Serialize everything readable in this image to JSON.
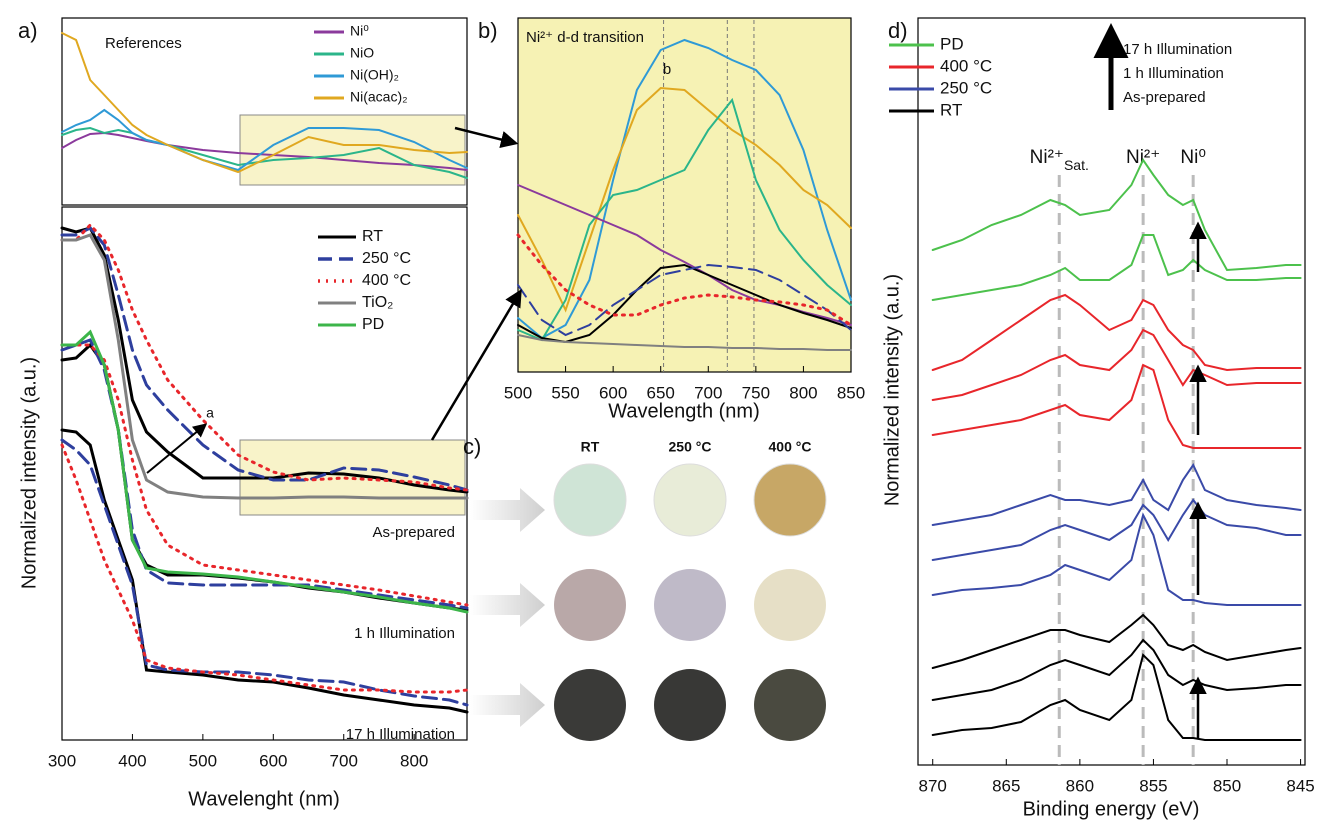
{
  "chart_data": [
    {
      "type": "line",
      "panel": "a)",
      "legend": "upper right",
      "annotations": [
        "References"
      ],
      "x": [
        300,
        320,
        340,
        360,
        380,
        400,
        420,
        450,
        500,
        550,
        600,
        650,
        700,
        750,
        800,
        850,
        875
      ],
      "xlim": [
        300,
        875
      ],
      "ylim": [
        0,
        187
      ],
      "series": [
        {
          "name": "Ni⁰",
          "color": "#8b3a9c",
          "values": [
            57,
            65,
            71,
            72,
            70,
            67,
            64,
            60,
            55,
            52,
            50,
            48,
            45,
            42,
            40,
            37,
            35
          ]
        },
        {
          "name": "NiO",
          "color": "#2bb58a",
          "values": [
            70,
            75,
            77,
            72,
            75,
            72,
            65,
            60,
            50,
            40,
            45,
            47,
            50,
            57,
            40,
            33,
            27
          ]
        },
        {
          "name": "Ni(OH)₂",
          "color": "#2f9ad6",
          "values": [
            73,
            80,
            85,
            95,
            85,
            72,
            65,
            60,
            45,
            35,
            60,
            77,
            77,
            75,
            63,
            45,
            37
          ]
        },
        {
          "name": "Ni(acac)₂",
          "color": "#e0a820",
          "values": [
            172,
            165,
            125,
            110,
            95,
            80,
            70,
            60,
            45,
            33,
            50,
            68,
            60,
            60,
            55,
            52,
            53
          ]
        }
      ]
    },
    {
      "type": "line",
      "legend": "upper right",
      "xlabel": "Wavelenght (nm)",
      "ylabel": "Normalized intensity (a.u.)",
      "annotations": [
        "As-prepared",
        "1 h Illumination",
        "17 h Illumination",
        "a"
      ],
      "x": [
        300,
        320,
        340,
        360,
        380,
        400,
        420,
        450,
        500,
        550,
        600,
        650,
        700,
        750,
        800,
        850,
        875
      ],
      "xlim": [
        300,
        875
      ],
      "xticks": [
        300,
        400,
        500,
        600,
        700,
        800
      ],
      "ylim": [
        0,
        533
      ],
      "series": [
        {
          "name": "RT",
          "color": "#000000",
          "dash": "solid",
          "values": [
            [
              512,
              508,
              512,
              485,
              420,
              340,
              308,
              288,
              262,
              262,
              262,
              267,
              266,
              262,
              255,
              250,
              248
            ],
            [
              380,
              382,
              395,
              375,
              310,
              200,
              175,
              165,
              165,
              162,
              158,
              152,
              148,
              142,
              137,
              132,
              130
            ],
            [
              310,
              308,
              295,
              240,
              200,
              160,
              70,
              68,
              65,
              60,
              58,
              52,
              45,
              40,
              35,
              32,
              28
            ]
          ]
        },
        {
          "name": "250 °C",
          "color": "#2e3f9e",
          "dash": "dashed",
          "values": [
            [
              505,
              505,
              512,
              495,
              445,
              390,
              355,
              330,
              295,
              270,
              260,
              260,
              272,
              270,
              263,
              255,
              250
            ],
            [
              390,
              395,
              400,
              370,
              310,
              210,
              170,
              157,
              155,
              155,
              155,
              155,
              150,
              145,
              140,
              135,
              132
            ],
            [
              300,
              290,
              275,
              235,
              195,
              155,
              75,
              70,
              68,
              68,
              65,
              60,
              58,
              50,
              44,
              40,
              35
            ]
          ]
        },
        {
          "name": "400 °C",
          "color": "#e8262b",
          "dash": "dotted",
          "values": [
            [
              500,
              500,
              515,
              500,
              470,
              430,
              400,
              360,
              320,
              285,
              268,
              260,
              262,
              260,
              258,
              252,
              250
            ],
            [
              395,
              395,
              395,
              380,
              340,
              280,
              230,
              195,
              175,
              170,
              165,
              160,
              155,
              150,
              144,
              138,
              135
            ],
            [
              295,
              260,
              220,
              180,
              150,
              120,
              80,
              72,
              68,
              65,
              60,
              55,
              50,
              50,
              48,
              48,
              50
            ]
          ]
        },
        {
          "name": "TiO₂",
          "color": "#808080",
          "dash": "solid",
          "values": [
            [
              500,
              500,
              505,
              480,
              400,
              300,
              260,
              248,
              243,
              242,
              242,
              243,
              243,
              242,
              242,
              242,
              242
            ],
            null,
            null
          ]
        },
        {
          "name": "PD",
          "color": "#3cb54a",
          "dash": "solid",
          "values": [
            null,
            [
              395,
              395,
              408,
              375,
              310,
              200,
              172,
              168,
              166,
              163,
              158,
              153,
              148,
              143,
              137,
              132,
              128
            ],
            null
          ]
        }
      ]
    },
    {
      "type": "line",
      "panel": "b)",
      "xlabel": "Wavelength (nm)",
      "annotations": [
        "Ni²⁺ d-d transition",
        "b"
      ],
      "x": [
        500,
        525,
        550,
        575,
        600,
        625,
        650,
        675,
        700,
        725,
        750,
        775,
        800,
        825,
        850
      ],
      "xlim": [
        500,
        850
      ],
      "xticks": [
        500,
        550,
        600,
        650,
        700,
        750,
        800,
        850
      ],
      "ylim": [
        0,
        354
      ],
      "vlines": [
        653,
        720,
        748
      ],
      "series": [
        {
          "name": "Ni(OH)₂",
          "color": "#2f9ad6",
          "dash": "solid",
          "values": [
            54,
            34,
            47,
            92,
            192,
            282,
            322,
            332,
            324,
            312,
            302,
            277,
            222,
            142,
            72
          ]
        },
        {
          "name": "Ni(acac)₂",
          "color": "#e0a820",
          "dash": "solid",
          "values": [
            157,
            112,
            62,
            132,
            202,
            262,
            284,
            282,
            262,
            242,
            227,
            207,
            182,
            167,
            144
          ]
        },
        {
          "name": "NiO",
          "color": "#2bb58a",
          "dash": "solid",
          "values": [
            42,
            32,
            72,
            147,
            177,
            182,
            192,
            202,
            242,
            272,
            192,
            142,
            112,
            87,
            67
          ]
        },
        {
          "name": "Ni⁰",
          "color": "#8b3a9c",
          "dash": "solid",
          "values": [
            187,
            177,
            167,
            157,
            147,
            137,
            122,
            110,
            97,
            82,
            72,
            67,
            60,
            54,
            47
          ]
        },
        {
          "name": "RT",
          "color": "#000000",
          "dash": "solid",
          "values": [
            47,
            34,
            30,
            37,
            57,
            82,
            104,
            107,
            97,
            87,
            77,
            67,
            59,
            52,
            44
          ]
        },
        {
          "name": "250 °C",
          "color": "#2e3f9e",
          "dash": "dashed",
          "values": [
            87,
            52,
            37,
            47,
            67,
            82,
            97,
            102,
            107,
            105,
            102,
            92,
            77,
            62,
            42
          ]
        },
        {
          "name": "400 °C",
          "color": "#e8262b",
          "dash": "dotted",
          "values": [
            137,
            107,
            82,
            67,
            57,
            57,
            67,
            74,
            77,
            75,
            72,
            70,
            67,
            62,
            47
          ]
        },
        {
          "name": "TiO₂",
          "color": "#808080",
          "dash": "solid",
          "values": [
            37,
            32,
            30,
            29,
            28,
            27,
            26,
            25,
            25,
            24,
            24,
            23,
            23,
            22,
            22
          ]
        }
      ]
    },
    {
      "type": "line",
      "panel": "d)",
      "legend": "upper left",
      "xlabel": "Binding energy (eV)",
      "ylabel": "Normalized intensity (a.u.)",
      "annotations": [
        "17 h Illumination",
        "1 h Illumination",
        "As-prepared"
      ],
      "x": [
        870,
        868,
        866,
        864,
        862,
        861,
        860,
        858,
        856.5,
        855.7,
        855,
        854,
        853,
        852.3,
        851.5,
        850,
        848,
        846,
        845
      ],
      "xlim": [
        871,
        844.7
      ],
      "xticks": [
        870,
        865,
        860,
        855,
        850,
        845
      ],
      "ylim": [
        0,
        747
      ],
      "peaks": [
        {
          "label": "Ni²⁺",
          "sub": "Sat.",
          "value": 861.4
        },
        {
          "label": "Ni²⁺",
          "value": 855.7
        },
        {
          "label": "Ni⁰",
          "value": 852.3
        }
      ],
      "series": [
        {
          "name": "PD",
          "color": "#4cc14c",
          "dash": "solid",
          "values": [
            [
              465,
              470,
              475,
              480,
              490,
              497,
              485,
              485,
              500,
              530,
              530,
              490,
              495,
              505,
              495,
              485,
              485,
              487,
              487
            ],
            [
              515,
              525,
              540,
              550,
              565,
              560,
              550,
              555,
              580,
              605,
              590,
              570,
              560,
              565,
              535,
              495,
              497,
              500,
              500
            ]
          ]
        },
        {
          "name": "400 °C",
          "color": "#e8262b",
          "dash": "solid",
          "values": [
            [
              330,
              335,
              340,
              345,
              355,
              360,
              350,
              345,
              365,
              400,
              395,
              345,
              320,
              317,
              317,
              317,
              317,
              317,
              317
            ],
            [
              365,
              370,
              380,
              390,
              405,
              410,
              400,
              395,
              415,
              435,
              430,
              405,
              380,
              395,
              390,
              380,
              382,
              382,
              382
            ],
            [
              395,
              405,
              425,
              445,
              465,
              470,
              460,
              435,
              445,
              465,
              460,
              435,
              420,
              415,
              400,
              395,
              397,
              397,
              397
            ]
          ]
        },
        {
          "name": "250 °C",
          "color": "#3a4aa8",
          "dash": "solid",
          "values": [
            [
              170,
              175,
              177,
              180,
              190,
              200,
              195,
              185,
              205,
              250,
              230,
              175,
              165,
              165,
              162,
              160,
              160,
              160,
              160
            ],
            [
              205,
              210,
              215,
              220,
              235,
              240,
              235,
              225,
              240,
              260,
              250,
              225,
              250,
              265,
              250,
              240,
              237,
              230,
              230
            ],
            [
              240,
              245,
              250,
              260,
              270,
              265,
              265,
              260,
              265,
              285,
              265,
              255,
              285,
              300,
              275,
              265,
              260,
              257,
              255
            ]
          ]
        },
        {
          "name": "RT",
          "color": "#000000",
          "dash": "solid",
          "values": [
            [
              30,
              35,
              37,
              43,
              60,
              65,
              55,
              45,
              65,
              110,
              100,
              45,
              27,
              27,
              25,
              25,
              25,
              25,
              25
            ],
            [
              65,
              70,
              75,
              85,
              100,
              105,
              100,
              90,
              110,
              125,
              115,
              90,
              80,
              85,
              80,
              75,
              77,
              80,
              80
            ],
            [
              97,
              105,
              115,
              125,
              135,
              135,
              130,
              123,
              140,
              150,
              140,
              120,
              115,
              120,
              113,
              105,
              110,
              115,
              117
            ]
          ]
        }
      ]
    }
  ],
  "photos": {
    "panel": "c)",
    "columns": [
      "RT",
      "250 °C",
      "400 °C"
    ]
  }
}
